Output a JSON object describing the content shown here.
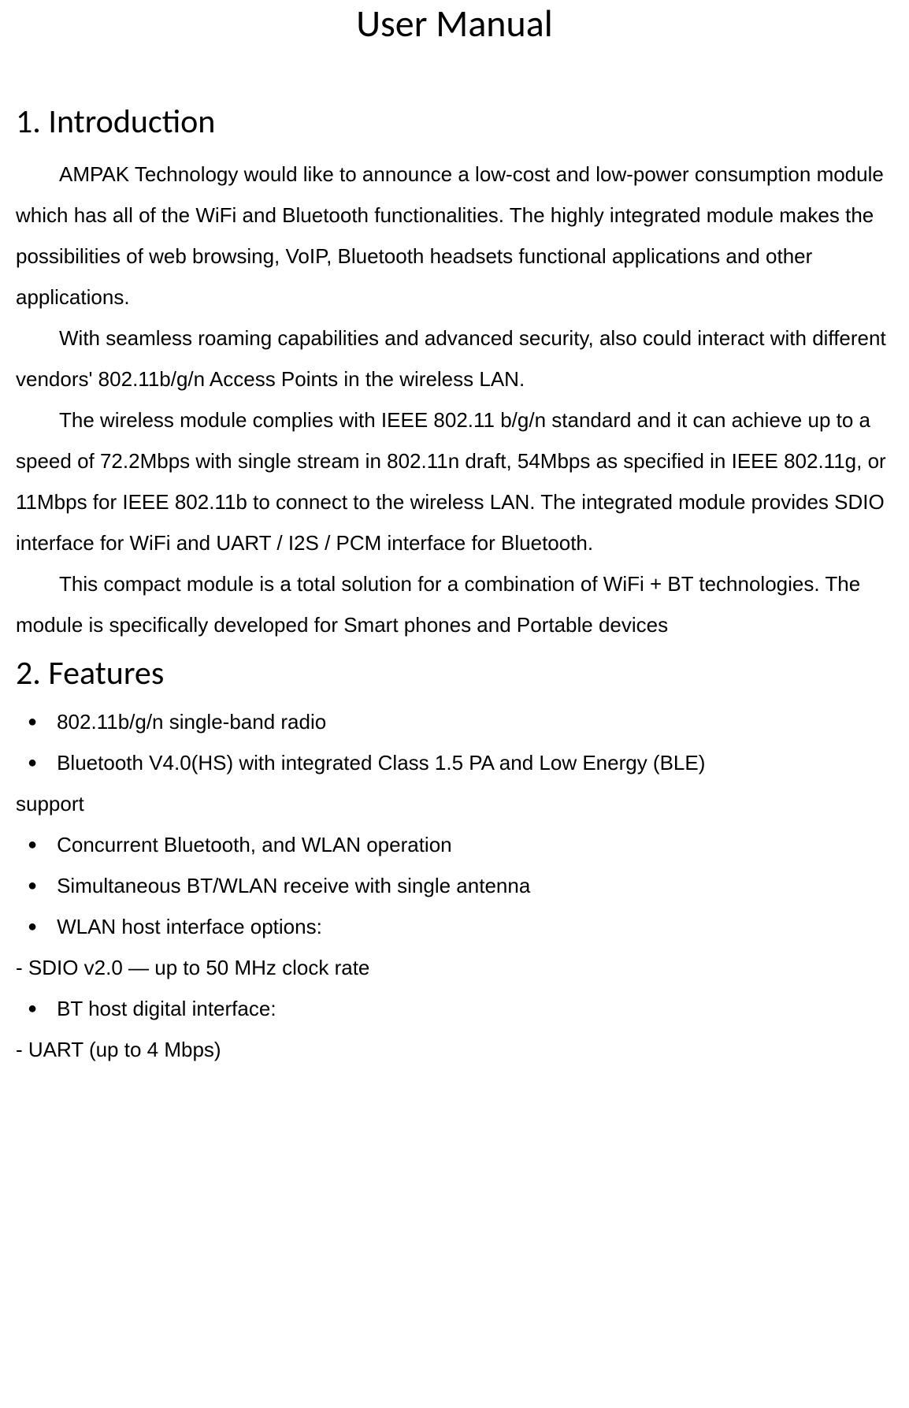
{
  "document": {
    "title": "User Manual",
    "section1": {
      "heading": "1. Introduction",
      "para1": "AMPAK Technology would like to announce a low-cost and low-power consumption module which has all of the WiFi and Bluetooth functionalities. The highly integrated module makes the possibilities of web browsing, VoIP, Bluetooth headsets functional applications and other applications.",
      "para2": "With seamless roaming capabilities and advanced security, also could interact with different vendors' 802.11b/g/n Access Points in the wireless LAN.",
      "para3": "The wireless module complies with IEEE 802.11 b/g/n standard and it can achieve up to a speed of 72.2Mbps with single stream in 802.11n draft, 54Mbps as specified in IEEE 802.11g, or 11Mbps for IEEE 802.11b to connect to the wireless LAN. The integrated module provides SDIO interface for WiFi and UART / I2S / PCM interface for Bluetooth.",
      "para4": "This compact module is a total solution for a combination of WiFi + BT technologies. The module is specifically developed for Smart phones and Portable devices"
    },
    "section2": {
      "heading": "2. Features",
      "bullets": {
        "b1": "802.11b/g/n single-band radio",
        "b2": "Bluetooth V4.0(HS) with integrated Class 1.5 PA and Low Energy (BLE)",
        "b2_wrap": "support",
        "b3": "Concurrent Bluetooth, and WLAN operation",
        "b4": "Simultaneous BT/WLAN receive with single antenna",
        "b5": "WLAN host interface options:",
        "b5_sub": "- SDIO v2.0 — up to 50 MHz clock rate",
        "b6": "BT host digital interface:",
        "b6_sub": "- UART (up to 4 Mbps)"
      }
    },
    "styling": {
      "background_color": "#ffffff",
      "text_color": "#000000",
      "title_fontsize": 48,
      "heading_fontsize": 42,
      "body_fontsize": 26,
      "bullet_marker": "●"
    }
  }
}
